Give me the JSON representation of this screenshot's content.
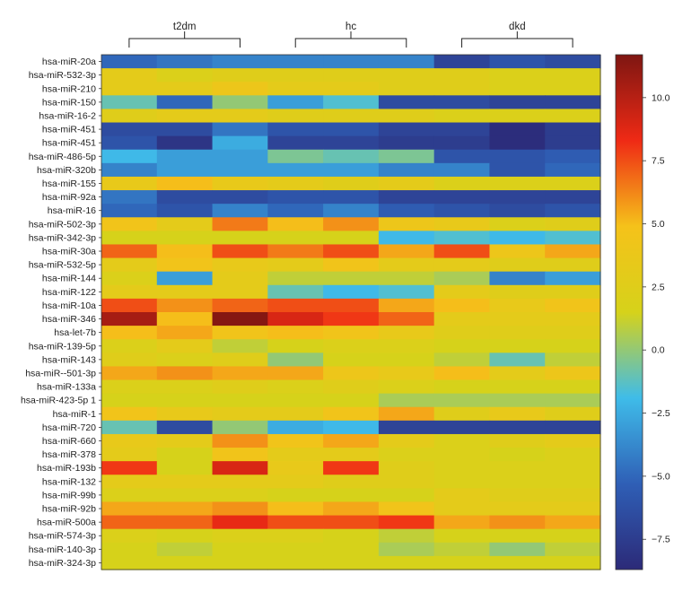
{
  "chart_data": {
    "type": "heatmap",
    "title": "",
    "xlabel": "",
    "ylabel": "",
    "groups": [
      {
        "label": "t2dm",
        "columns": 3
      },
      {
        "label": "hc",
        "columns": 3
      },
      {
        "label": "dkd",
        "columns": 3
      }
    ],
    "rows": [
      "hsa-miR-20a",
      "hsa-miR-532-3p",
      "hsa-miR-210",
      "hsa-miR-150",
      "hsa-miR-16-2",
      "hsa-miR-451",
      "hsa-miR-451",
      "hsa-miR-486-5p",
      "hsa-miR-320b",
      "hsa-miR-155",
      "hsa-miR-92a",
      "hsa-miR-16",
      "hsa-miR-502-3p",
      "hsa-miR-342-3p",
      "hsa-miR-30a",
      "hsa-miR-532-5p",
      "hsa-miR-144",
      "hsa-miR-122",
      "hsa-miR-10a",
      "hsa-miR-346",
      "hsa-let-7b",
      "hsa-miR-139-5p",
      "hsa-miR-143",
      "hsa-miR--501-3p",
      "hsa-miR-133a",
      "hsa-miR-423-5p 1",
      "hsa-miR-1",
      "hsa-miR-720",
      "hsa-miR-660",
      "hsa-miR-378",
      "hsa-miR-193b",
      "hsa-miR-132",
      "hsa-miR-99b",
      "hsa-miR-92b",
      "hsa-miR-500a",
      "hsa-miR-574-3p",
      "hsa-miR-140-3p",
      "hsa-miR-324-3p"
    ],
    "values": [
      [
        -5.0,
        -4.5,
        -4.0,
        -4.0,
        -4.0,
        -4.0,
        -7.0,
        -6.0,
        -6.5
      ],
      [
        3.0,
        2.0,
        2.5,
        2.5,
        2.5,
        2.5,
        2.5,
        2.0,
        2.0
      ],
      [
        3.0,
        3.0,
        4.0,
        3.0,
        3.0,
        2.5,
        2.5,
        2.0,
        2.0
      ],
      [
        -1.0,
        -5.0,
        0.0,
        -3.0,
        -1.5,
        -6.5,
        -6.5,
        -7.0,
        -7.0
      ],
      [
        2.5,
        3.0,
        3.0,
        2.5,
        2.5,
        2.5,
        2.0,
        2.0,
        2.0
      ],
      [
        -6.5,
        -6.5,
        -4.5,
        -6.0,
        -6.0,
        -7.0,
        -7.0,
        -8.5,
        -7.5
      ],
      [
        -6.0,
        -8.0,
        -2.5,
        -7.0,
        -7.0,
        -7.5,
        -7.5,
        -8.5,
        -7.5
      ],
      [
        -2.0,
        -3.0,
        -3.0,
        -0.5,
        -1.0,
        -0.5,
        -6.0,
        -6.0,
        -5.5
      ],
      [
        -4.0,
        -3.0,
        -3.0,
        -3.0,
        -3.0,
        -4.0,
        -4.0,
        -6.0,
        -5.0
      ],
      [
        3.5,
        5.0,
        3.5,
        3.0,
        2.5,
        3.0,
        2.0,
        2.0,
        2.0
      ],
      [
        -4.5,
        -6.5,
        -6.5,
        -6.0,
        -6.0,
        -7.0,
        -7.0,
        -7.0,
        -7.0
      ],
      [
        -5.0,
        -6.0,
        -4.0,
        -5.0,
        -4.0,
        -5.5,
        -6.0,
        -6.5,
        -6.0
      ],
      [
        4.5,
        3.0,
        6.5,
        5.0,
        6.0,
        4.0,
        3.5,
        2.0,
        2.5
      ],
      [
        1.5,
        1.5,
        1.5,
        1.5,
        1.5,
        -2.0,
        -1.5,
        -2.0,
        -1.5
      ],
      [
        7.0,
        5.0,
        7.5,
        6.5,
        7.5,
        5.5,
        7.5,
        4.0,
        5.5
      ],
      [
        3.0,
        4.5,
        3.5,
        3.0,
        4.5,
        3.0,
        3.0,
        2.5,
        2.5
      ],
      [
        2.0,
        -3.0,
        3.0,
        1.0,
        1.0,
        1.0,
        0.5,
        -4.0,
        -3.0
      ],
      [
        3.0,
        3.0,
        3.0,
        -1.0,
        -2.0,
        -1.5,
        3.0,
        2.5,
        2.5
      ],
      [
        7.5,
        6.0,
        7.0,
        7.5,
        7.5,
        5.5,
        5.0,
        3.5,
        4.5
      ],
      [
        10.5,
        5.0,
        11.5,
        9.0,
        8.0,
        7.0,
        3.0,
        3.0,
        3.0
      ],
      [
        5.0,
        5.5,
        4.5,
        5.0,
        4.5,
        3.5,
        2.5,
        2.5,
        2.5
      ],
      [
        2.0,
        3.0,
        1.0,
        1.5,
        2.0,
        2.0,
        1.5,
        1.5,
        1.5
      ],
      [
        2.5,
        2.0,
        2.5,
        0.0,
        1.5,
        1.5,
        1.0,
        -1.0,
        1.0
      ],
      [
        5.5,
        6.0,
        5.5,
        5.5,
        4.0,
        3.5,
        5.0,
        3.0,
        4.0
      ],
      [
        2.0,
        2.0,
        2.5,
        2.0,
        2.5,
        2.0,
        1.5,
        1.5,
        1.5
      ],
      [
        1.5,
        1.5,
        1.5,
        1.5,
        1.5,
        0.5,
        0.5,
        0.5,
        0.5
      ],
      [
        4.5,
        3.5,
        3.0,
        3.0,
        4.5,
        5.5,
        2.5,
        3.5,
        2.5
      ],
      [
        -1.0,
        -6.5,
        0.0,
        -2.5,
        -2.0,
        -7.0,
        -7.0,
        -7.0,
        -7.0
      ],
      [
        3.5,
        3.0,
        6.0,
        4.5,
        5.5,
        3.0,
        2.0,
        2.5,
        3.0
      ],
      [
        3.0,
        1.5,
        4.5,
        3.0,
        3.0,
        2.0,
        2.0,
        1.5,
        2.0
      ],
      [
        8.0,
        1.5,
        9.0,
        3.5,
        8.0,
        2.5,
        2.0,
        2.0,
        2.0
      ],
      [
        3.0,
        3.0,
        3.0,
        3.0,
        2.5,
        2.5,
        2.0,
        2.0,
        2.0
      ],
      [
        2.0,
        2.0,
        2.0,
        1.5,
        1.5,
        1.5,
        3.0,
        2.5,
        2.5
      ],
      [
        5.5,
        5.5,
        6.0,
        5.0,
        5.5,
        4.5,
        3.0,
        3.0,
        3.0
      ],
      [
        7.0,
        7.0,
        8.5,
        7.5,
        7.5,
        8.0,
        5.5,
        6.0,
        5.5
      ],
      [
        2.0,
        1.5,
        2.0,
        2.0,
        1.5,
        1.0,
        1.5,
        1.5,
        1.5
      ],
      [
        1.5,
        1.0,
        1.5,
        1.5,
        1.5,
        0.5,
        1.0,
        0.0,
        1.0
      ],
      [
        1.5,
        1.5,
        1.5,
        1.5,
        1.5,
        1.5,
        1.5,
        1.5,
        1.5
      ]
    ],
    "colorbar": {
      "vmin": -8.7,
      "vmax": 11.7,
      "ticks": [
        -7.5,
        -5.0,
        -2.5,
        0.0,
        2.5,
        5.0,
        7.5,
        10.0
      ],
      "tick_labels": [
        "−7.5",
        "−5.0",
        "−2.5",
        "0.0",
        "2.5",
        "5.0",
        "7.5",
        "10.0"
      ],
      "colormap": "jet",
      "stops": [
        "#2c2a78",
        "#2f5fb6",
        "#3fbce9",
        "#d6d21a",
        "#f5c21a",
        "#ef2a15",
        "#7e1612"
      ]
    }
  }
}
